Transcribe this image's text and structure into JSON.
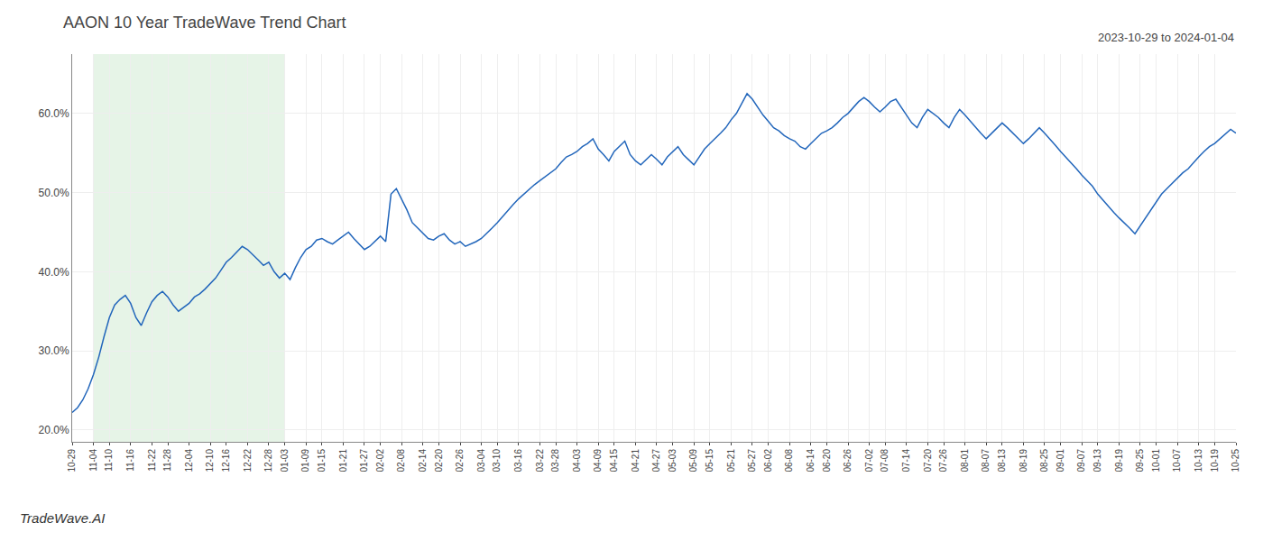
{
  "chart_data": {
    "type": "line",
    "title": "AAON 10 Year TradeWave Trend Chart",
    "subtitle": "2023-10-29 to 2024-01-04",
    "annotations": [
      {
        "text": "TradeWave.AI"
      }
    ],
    "color": "#2266bb",
    "grid": true,
    "highlight": {
      "start": "11-04",
      "end": "01-03",
      "color": "#c8e6c9"
    },
    "ylim": [
      0.185,
      0.675
    ],
    "yticks": [
      {
        "value": 0.2,
        "label": "20.0%"
      },
      {
        "value": 0.3,
        "label": "30.0%"
      },
      {
        "value": 0.4,
        "label": "40.0%"
      },
      {
        "value": 0.5,
        "label": "50.0%"
      },
      {
        "value": 0.6,
        "label": "60.0%"
      }
    ],
    "categories": [
      "10-29",
      null,
      null,
      null,
      "11-04",
      null,
      null,
      "11-10",
      null,
      null,
      null,
      "11-16",
      null,
      null,
      null,
      "11-22",
      null,
      null,
      "11-28",
      null,
      null,
      null,
      "12-04",
      null,
      null,
      null,
      "12-10",
      null,
      null,
      "12-16",
      null,
      null,
      null,
      "12-22",
      null,
      null,
      null,
      "12-28",
      null,
      null,
      "01-03",
      null,
      null,
      null,
      "01-09",
      null,
      null,
      "01-15",
      null,
      null,
      null,
      "01-21",
      null,
      null,
      null,
      "01-27",
      null,
      null,
      "02-02",
      null,
      null,
      null,
      "02-08",
      null,
      null,
      null,
      "02-14",
      null,
      null,
      "02-20",
      null,
      null,
      null,
      "02-26",
      null,
      null,
      null,
      "03-04",
      null,
      null,
      "03-10",
      null,
      null,
      null,
      "03-16",
      null,
      null,
      null,
      "03-22",
      null,
      null,
      "03-28",
      null,
      null,
      null,
      "04-03",
      null,
      null,
      null,
      "04-09",
      null,
      null,
      "04-15",
      null,
      null,
      null,
      "04-21",
      null,
      null,
      null,
      "04-27",
      null,
      null,
      "05-03",
      null,
      null,
      null,
      "05-09",
      null,
      null,
      "05-15",
      null,
      null,
      null,
      "05-21",
      null,
      null,
      null,
      "05-27",
      null,
      null,
      "06-02",
      null,
      null,
      null,
      "06-08",
      null,
      null,
      null,
      "06-14",
      null,
      null,
      "06-20",
      null,
      null,
      null,
      "06-26",
      null,
      null,
      null,
      "07-02",
      null,
      null,
      "07-08",
      null,
      null,
      null,
      "07-14",
      null,
      null,
      null,
      "07-20",
      null,
      null,
      "07-26",
      null,
      null,
      null,
      "08-01",
      null,
      null,
      null,
      "08-07",
      null,
      null,
      "08-13",
      null,
      null,
      null,
      "08-19",
      null,
      null,
      null,
      "08-25",
      null,
      null,
      "09-01",
      null,
      null,
      null,
      "09-07",
      null,
      null,
      "09-13",
      null,
      null,
      null,
      "09-19",
      null,
      null,
      null,
      "09-25",
      null,
      null,
      "10-01",
      null,
      null,
      null,
      "10-07",
      null,
      null,
      null,
      "10-13",
      null,
      null,
      "10-19",
      null,
      null,
      null,
      "10-25"
    ],
    "values": [
      0.222,
      0.228,
      0.238,
      0.252,
      0.27,
      0.292,
      0.318,
      0.342,
      0.358,
      0.365,
      0.37,
      0.36,
      0.342,
      0.332,
      0.348,
      0.362,
      0.37,
      0.375,
      0.368,
      0.358,
      0.35,
      0.355,
      0.36,
      0.368,
      0.372,
      0.378,
      0.385,
      0.392,
      0.402,
      0.412,
      0.418,
      0.425,
      0.432,
      0.428,
      0.422,
      0.415,
      0.408,
      0.412,
      0.4,
      0.392,
      0.398,
      0.39,
      0.405,
      0.418,
      0.428,
      0.432,
      0.44,
      0.442,
      0.438,
      0.435,
      0.44,
      0.445,
      0.45,
      0.442,
      0.435,
      0.428,
      0.432,
      0.438,
      0.445,
      0.438,
      0.498,
      0.505,
      0.492,
      0.478,
      0.462,
      0.455,
      0.448,
      0.442,
      0.44,
      0.445,
      0.448,
      0.44,
      0.435,
      0.438,
      0.432,
      0.435,
      0.438,
      0.442,
      0.448,
      0.455,
      0.462,
      0.47,
      0.478,
      0.485,
      0.492,
      0.498,
      0.505,
      0.51,
      0.515,
      0.52,
      0.525,
      0.53,
      0.538,
      0.545,
      0.548,
      0.552,
      0.558,
      0.562,
      0.568,
      0.555,
      0.548,
      0.54,
      0.552,
      0.558,
      0.565,
      0.548,
      0.54,
      0.535,
      0.542,
      0.548,
      0.542,
      0.535,
      0.545,
      0.552,
      0.558,
      0.548,
      0.542,
      0.535,
      0.545,
      0.555,
      0.562,
      0.568,
      0.575,
      0.582,
      0.592,
      0.6,
      0.612,
      0.625,
      0.618,
      0.608,
      0.598,
      0.59,
      0.582,
      0.578,
      0.572,
      0.568,
      0.565,
      0.558,
      0.555,
      0.562,
      0.568,
      0.575,
      0.578,
      0.582,
      0.588,
      0.595,
      0.6,
      0.608,
      0.615,
      0.62,
      0.615,
      0.608,
      0.602,
      0.608,
      0.615,
      0.618,
      0.608,
      0.598,
      0.588,
      0.582,
      0.595,
      0.605,
      0.6,
      0.595,
      0.588,
      0.582,
      0.595,
      0.605,
      0.598,
      0.59,
      0.582,
      0.575,
      0.568,
      0.575,
      0.582,
      0.588,
      0.582,
      0.575,
      0.568,
      0.562,
      0.568,
      0.575,
      0.582,
      0.575,
      0.568,
      0.56,
      0.552,
      0.545,
      0.538,
      0.53,
      0.522,
      0.515,
      0.508,
      0.498,
      0.49,
      0.482,
      0.475,
      0.468,
      0.462,
      0.455,
      0.448,
      0.458,
      0.468,
      0.478,
      0.488,
      0.498,
      0.505,
      0.512,
      0.518,
      0.525,
      0.53,
      0.538,
      0.545,
      0.552,
      0.558,
      0.562,
      0.568,
      0.575,
      0.58,
      0.575
    ]
  }
}
